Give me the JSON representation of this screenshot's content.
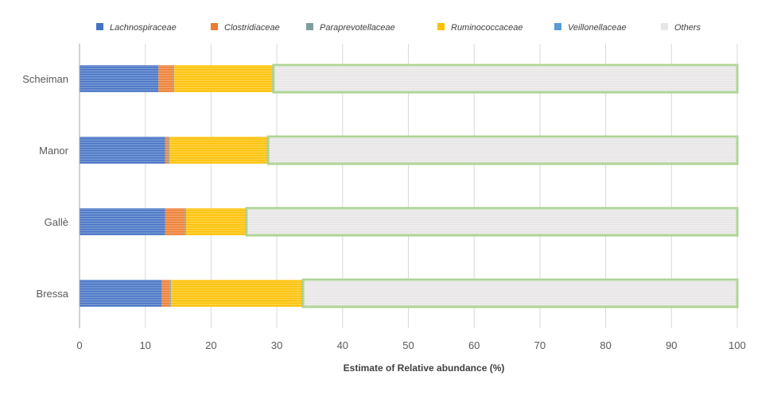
{
  "chart_data": {
    "type": "bar",
    "orientation": "horizontal",
    "stacked": true,
    "title": "",
    "xlabel": "Estimate of Relative abundance (%)",
    "ylabel": "",
    "xlim": [
      0,
      100
    ],
    "xticks": [
      0,
      10,
      20,
      30,
      40,
      50,
      60,
      70,
      80,
      90,
      100
    ],
    "grid": true,
    "legend_position": "top",
    "categories": [
      "Scheiman",
      "Manor",
      "Gallè",
      "Bressa"
    ],
    "series": [
      {
        "name": "Lachnospiraceae",
        "color": "#4472C4",
        "values": [
          12.0,
          13.0,
          13.0,
          12.5
        ]
      },
      {
        "name": "Clostridiaceae",
        "color": "#ED7D31",
        "values": [
          2.2,
          0.5,
          3.0,
          1.2
        ]
      },
      {
        "name": "Paraprevotellaceae",
        "color": "#7F9F9F",
        "values": [
          0.2,
          0.2,
          0.2,
          0.2
        ]
      },
      {
        "name": "Ruminococcaceae",
        "color": "#FFC000",
        "values": [
          14.9,
          14.8,
          9.0,
          19.9
        ]
      },
      {
        "name": "Veillonellaceae",
        "color": "#5B9BD5",
        "values": [
          0.2,
          0.2,
          0.2,
          0.2
        ]
      },
      {
        "name": "Others",
        "color": "#E7E6E6",
        "border": "#A9D18E",
        "values": [
          70.5,
          71.3,
          74.6,
          66.0
        ]
      }
    ]
  }
}
